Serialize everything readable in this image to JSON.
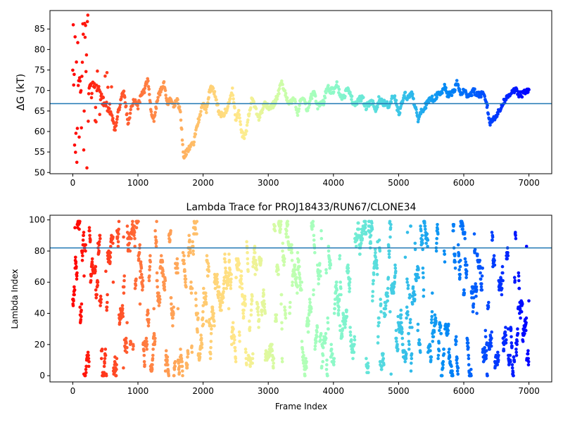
{
  "chart_data": [
    {
      "type": "scatter",
      "title": "",
      "xlabel": "",
      "ylabel": "ΔG (kT)",
      "xlim": [
        -350,
        7350
      ],
      "ylim": [
        49.7,
        89.5
      ],
      "xticks": [
        0,
        1000,
        2000,
        3000,
        4000,
        5000,
        6000,
        7000
      ],
      "yticks": [
        50,
        55,
        60,
        65,
        70,
        75,
        80,
        85
      ],
      "hline": 66.8,
      "hline_color": "#1f77b4",
      "colormap": "rainbow (red at frame 0 → violet at frame 7000)",
      "grid": false,
      "profile": [
        [
          0,
          66
        ],
        [
          100,
          69
        ],
        [
          200,
          70
        ],
        [
          300,
          72
        ],
        [
          400,
          70
        ],
        [
          500,
          67
        ],
        [
          600,
          64
        ],
        [
          650,
          60
        ],
        [
          700,
          65
        ],
        [
          780,
          70
        ],
        [
          850,
          62
        ],
        [
          900,
          66
        ],
        [
          950,
          68
        ],
        [
          1000,
          66
        ],
        [
          1050,
          69
        ],
        [
          1100,
          70
        ],
        [
          1150,
          73
        ],
        [
          1200,
          65
        ],
        [
          1250,
          63
        ],
        [
          1300,
          68
        ],
        [
          1350,
          70
        ],
        [
          1400,
          72
        ],
        [
          1450,
          67
        ],
        [
          1500,
          68
        ],
        [
          1550,
          66
        ],
        [
          1600,
          68
        ],
        [
          1650,
          65
        ],
        [
          1700,
          54
        ],
        [
          1750,
          55
        ],
        [
          1800,
          56
        ],
        [
          1850,
          57
        ],
        [
          1900,
          61
        ],
        [
          1950,
          64
        ],
        [
          2000,
          67
        ],
        [
          2050,
          65
        ],
        [
          2100,
          70
        ],
        [
          2150,
          71
        ],
        [
          2200,
          68
        ],
        [
          2250,
          64
        ],
        [
          2300,
          64
        ],
        [
          2350,
          65
        ],
        [
          2400,
          67
        ],
        [
          2450,
          70
        ],
        [
          2500,
          63
        ],
        [
          2550,
          65
        ],
        [
          2600,
          59
        ],
        [
          2650,
          59
        ],
        [
          2700,
          64
        ],
        [
          2750,
          68
        ],
        [
          2800,
          66
        ],
        [
          2850,
          63
        ],
        [
          2900,
          65
        ],
        [
          2950,
          67
        ],
        [
          3000,
          66
        ],
        [
          3050,
          66
        ],
        [
          3100,
          67
        ],
        [
          3150,
          69
        ],
        [
          3200,
          72
        ],
        [
          3250,
          70
        ],
        [
          3300,
          67
        ],
        [
          3350,
          67
        ],
        [
          3400,
          68
        ],
        [
          3450,
          64
        ],
        [
          3500,
          68
        ],
        [
          3550,
          68
        ],
        [
          3600,
          65
        ],
        [
          3650,
          68
        ],
        [
          3700,
          70
        ],
        [
          3750,
          66
        ],
        [
          3800,
          67
        ],
        [
          3850,
          67
        ],
        [
          3900,
          71
        ],
        [
          3950,
          70
        ],
        [
          4000,
          70
        ],
        [
          4050,
          72
        ],
        [
          4100,
          69
        ],
        [
          4150,
          68
        ],
        [
          4200,
          70
        ],
        [
          4250,
          70
        ],
        [
          4300,
          67
        ],
        [
          4350,
          67
        ],
        [
          4400,
          68
        ],
        [
          4450,
          68
        ],
        [
          4500,
          66
        ],
        [
          4550,
          67
        ],
        [
          4600,
          67
        ],
        [
          4650,
          65
        ],
        [
          4700,
          68
        ],
        [
          4750,
          67
        ],
        [
          4800,
          67
        ],
        [
          4850,
          66
        ],
        [
          4900,
          68
        ],
        [
          4950,
          68
        ],
        [
          5000,
          64
        ],
        [
          5050,
          67
        ],
        [
          5100,
          69
        ],
        [
          5150,
          68
        ],
        [
          5200,
          70
        ],
        [
          5250,
          66
        ],
        [
          5300,
          63
        ],
        [
          5350,
          65
        ],
        [
          5400,
          66
        ],
        [
          5450,
          67
        ],
        [
          5500,
          68
        ],
        [
          5550,
          68
        ],
        [
          5600,
          69
        ],
        [
          5650,
          69
        ],
        [
          5700,
          71
        ],
        [
          5750,
          69
        ],
        [
          5800,
          69
        ],
        [
          5850,
          70
        ],
        [
          5900,
          72
        ],
        [
          5950,
          69
        ],
        [
          6000,
          70
        ],
        [
          6050,
          69
        ],
        [
          6100,
          69
        ],
        [
          6150,
          70
        ],
        [
          6200,
          69
        ],
        [
          6250,
          69
        ],
        [
          6300,
          69
        ],
        [
          6350,
          67
        ],
        [
          6400,
          62
        ],
        [
          6450,
          63
        ],
        [
          6500,
          64
        ],
        [
          6550,
          65
        ],
        [
          6600,
          67
        ],
        [
          6650,
          68
        ],
        [
          6700,
          69
        ],
        [
          6750,
          70
        ],
        [
          6800,
          70
        ],
        [
          6850,
          69
        ],
        [
          6900,
          69
        ],
        [
          6950,
          70
        ],
        [
          7000,
          70
        ]
      ]
    },
    {
      "type": "scatter",
      "title": "Lambda Trace for PROJ18433/RUN67/CLONE34",
      "xlabel": "Frame Index",
      "ylabel": "Lambda Index",
      "xlim": [
        -350,
        7350
      ],
      "ylim": [
        -4,
        103
      ],
      "xticks": [
        0,
        1000,
        2000,
        3000,
        4000,
        5000,
        6000,
        7000
      ],
      "yticks": [
        0,
        20,
        40,
        60,
        80,
        100
      ],
      "hline": 82,
      "hline_color": "#1f77b4",
      "colormap": "rainbow (red at frame 0 → violet at frame 7000)",
      "grid": false,
      "lambda_range": [
        0,
        99
      ],
      "frame_range": [
        0,
        7000
      ]
    }
  ]
}
